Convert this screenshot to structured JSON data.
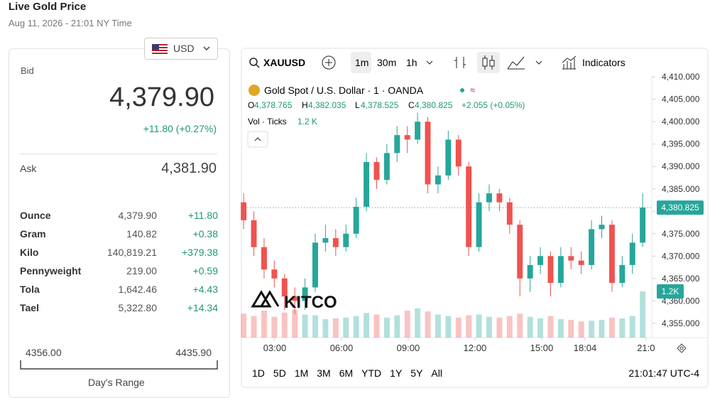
{
  "header": {
    "title": "Live Gold Price",
    "date": "Aug 11, 2026 - 21:01 NY Time",
    "currency": "USD"
  },
  "quote": {
    "bid_label": "Bid",
    "bid": "4,379.90",
    "change": "+11.80 (+0.27%)",
    "ask_label": "Ask",
    "ask": "4,381.90"
  },
  "table": {
    "rows": [
      [
        "Ounce",
        "4,379.90",
        "+11.80"
      ],
      [
        "Gram",
        "140.82",
        "+0.38"
      ],
      [
        "Kilo",
        "140,819.21",
        "+379.38"
      ],
      [
        "Pennyweight",
        "219.00",
        "+0.59"
      ],
      [
        "Tola",
        "1,642.46",
        "+4.43"
      ],
      [
        "Tael",
        "5,322.80",
        "+14.34"
      ]
    ]
  },
  "range": {
    "low": "4356.00",
    "high": "4435.90",
    "label": "Day's Range"
  },
  "toolbar": {
    "symbol": "XAUUSD",
    "intervals": [
      "1m",
      "30m",
      "1h"
    ],
    "indicators": "Indicators"
  },
  "legend": {
    "name": "Gold Spot / U.S. Dollar · 1 · OANDA",
    "o": "4,378.765",
    "h": "4,382.035",
    "l": "4,378.525",
    "c": "4,380.825",
    "change": "+2.055 (+0.05%)",
    "vol": "Vol · Ticks",
    "vol_value": "1.2 K"
  },
  "logo": "KITCO",
  "chart_data": {
    "type": "candlestick",
    "x": [
      1.6,
      2.06,
      2.52,
      2.98,
      3.44,
      3.9,
      4.36,
      4.82,
      5.28,
      5.74,
      6.2,
      6.66,
      7.12,
      7.58,
      8.04,
      8.5,
      8.96,
      9.42,
      9.88,
      10.34,
      10.8,
      11.26,
      11.72,
      12.18,
      12.64,
      13.1,
      13.56,
      14.02,
      14.48,
      14.94,
      15.4,
      15.86,
      16.32,
      16.78,
      17.24,
      17.7,
      18.16,
      18.62,
      19.08,
      19.54
    ],
    "ohlc": [
      [
        4382,
        4384,
        4376,
        4378
      ],
      [
        4378,
        4380,
        4370,
        4372
      ],
      [
        4372,
        4374,
        4365,
        4367
      ],
      [
        4367,
        4369,
        4363,
        4365
      ],
      [
        4365,
        4366,
        4358,
        4361
      ],
      [
        4361,
        4363,
        4357,
        4360
      ],
      [
        4360,
        4365,
        4358,
        4363
      ],
      [
        4363,
        4375,
        4362,
        4373
      ],
      [
        4373,
        4377,
        4371,
        4374
      ],
      [
        4374,
        4376,
        4370,
        4372
      ],
      [
        4372,
        4377,
        4371,
        4375
      ],
      [
        4375,
        4383,
        4374,
        4381
      ],
      [
        4381,
        4393,
        4380,
        4391
      ],
      [
        4391,
        4392,
        4385,
        4387
      ],
      [
        4387,
        4395,
        4386,
        4393
      ],
      [
        4393,
        4399,
        4391,
        4397
      ],
      [
        4397,
        4399,
        4393,
        4396
      ],
      [
        4396,
        4402,
        4395,
        4400
      ],
      [
        4400,
        4401,
        4384,
        4386
      ],
      [
        4386,
        4390,
        4384,
        4388
      ],
      [
        4388,
        4398,
        4387,
        4396
      ],
      [
        4396,
        4397,
        4388,
        4390
      ],
      [
        4390,
        4391,
        4370,
        4372
      ],
      [
        4372,
        4384,
        4371,
        4382
      ],
      [
        4382,
        4386,
        4380,
        4384
      ],
      [
        4384,
        4385,
        4380,
        4382
      ],
      [
        4382,
        4383,
        4375,
        4377
      ],
      [
        4377,
        4378,
        4361,
        4365
      ],
      [
        4365,
        4370,
        4362,
        4368
      ],
      [
        4368,
        4372,
        4366,
        4370
      ],
      [
        4370,
        4371,
        4361,
        4364
      ],
      [
        4364,
        4372,
        4363,
        4370
      ],
      [
        4370,
        4372,
        4367,
        4369
      ],
      [
        4369,
        4371,
        4366,
        4368
      ],
      [
        4368,
        4378,
        4367,
        4376
      ],
      [
        4376,
        4379,
        4374,
        4377
      ],
      [
        4377,
        4378,
        4362,
        4364
      ],
      [
        4364,
        4370,
        4363,
        4368
      ],
      [
        4368,
        4375,
        4366,
        4373
      ],
      [
        4373,
        4384,
        4372,
        4380.825
      ]
    ],
    "volume": [
      620,
      560,
      700,
      540,
      650,
      720,
      600,
      580,
      480,
      500,
      520,
      560,
      640,
      600,
      520,
      580,
      700,
      760,
      680,
      600,
      560,
      520,
      580,
      600,
      540,
      520,
      560,
      620,
      540,
      500,
      560,
      480,
      460,
      420,
      440,
      460,
      520,
      500,
      560,
      1200
    ],
    "volume_label": "1.2K",
    "up_color": "#26a69a",
    "down_color": "#ef5350",
    "last_price": {
      "value": 4380.825,
      "label": "4,380.825"
    },
    "xlim": [
      1.5,
      19.95
    ],
    "xticks": [
      {
        "value": 3,
        "label": "03:00"
      },
      {
        "value": 6,
        "label": "06:00"
      },
      {
        "value": 9,
        "label": "09:00"
      },
      {
        "value": 12,
        "label": "12:00"
      },
      {
        "value": 15,
        "label": "15:00"
      },
      {
        "value": 16.95,
        "label": "18:04"
      },
      {
        "value": 19.69,
        "label": "21:0"
      }
    ],
    "ylim": [
      4351.8,
      4411.3
    ],
    "yticks": [
      {
        "value": 4355,
        "label": "4,355.000"
      },
      {
        "value": 4360,
        "label": "4,360.000"
      },
      {
        "value": 4365,
        "label": "4,365.000"
      },
      {
        "value": 4370,
        "label": "4,370.000"
      },
      {
        "value": 4375,
        "label": "4,375.000"
      },
      {
        "value": 4380,
        "label": "4,380.000"
      },
      {
        "value": 4385,
        "label": "4,385.000"
      },
      {
        "value": 4390,
        "label": "4,390.000"
      },
      {
        "value": 4395,
        "label": "4,395.000"
      },
      {
        "value": 4400,
        "label": "4,400.000"
      },
      {
        "value": 4405,
        "label": "4,405.000"
      },
      {
        "value": 4410,
        "label": "4,410.000"
      }
    ]
  },
  "range_buttons": [
    "1D",
    "5D",
    "1M",
    "3M",
    "6M",
    "YTD",
    "1Y",
    "5Y",
    "All"
  ],
  "clock": "21:01:47 UTC-4"
}
